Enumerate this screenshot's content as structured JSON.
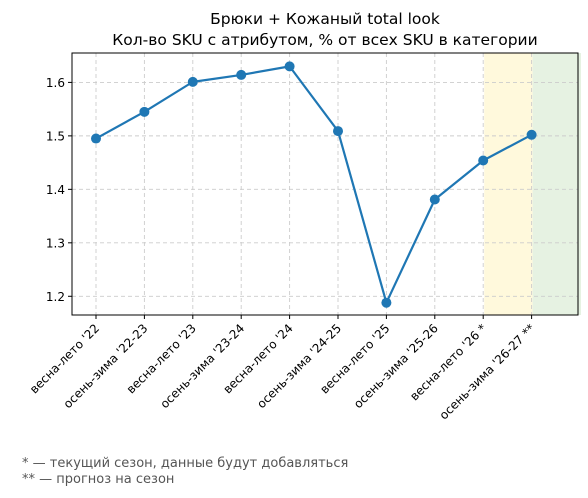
{
  "chart_data": {
    "type": "line",
    "title": "Брюки + Кожаный total look",
    "subtitle": "Кол-во SKU с атрибутом, % от всех SKU в категории",
    "xlabel": "",
    "ylabel": "",
    "categories": [
      "весна-лето '22",
      "осень-зима '22-23",
      "весна-лето '23",
      "осень-зима '23-24",
      "весна-лето '24",
      "осень-зима '24-25",
      "весна-лето '25",
      "осень-зима '25-26",
      "весна-лето '26 *",
      "осень-зима '26-27 **"
    ],
    "series": [
      {
        "values": [
          1.495,
          1.545,
          1.601,
          1.614,
          1.63,
          1.509,
          1.188,
          1.381,
          1.454,
          1.502
        ]
      }
    ],
    "ylim": [
      1.165,
      1.655
    ],
    "yticks": [
      "1.2",
      "1.3",
      "1.4",
      "1.5",
      "1.6"
    ],
    "grid": true,
    "line_color": "#1f77b4",
    "highlights": [
      {
        "from": 8,
        "to": 9,
        "color": "#fff9dc"
      },
      {
        "from": 9,
        "to": 10,
        "color": "#e6f2e2"
      }
    ]
  },
  "footnotes": [
    "* — текущий сезон, данные будут добавляться",
    "** — прогноз на сезон"
  ]
}
